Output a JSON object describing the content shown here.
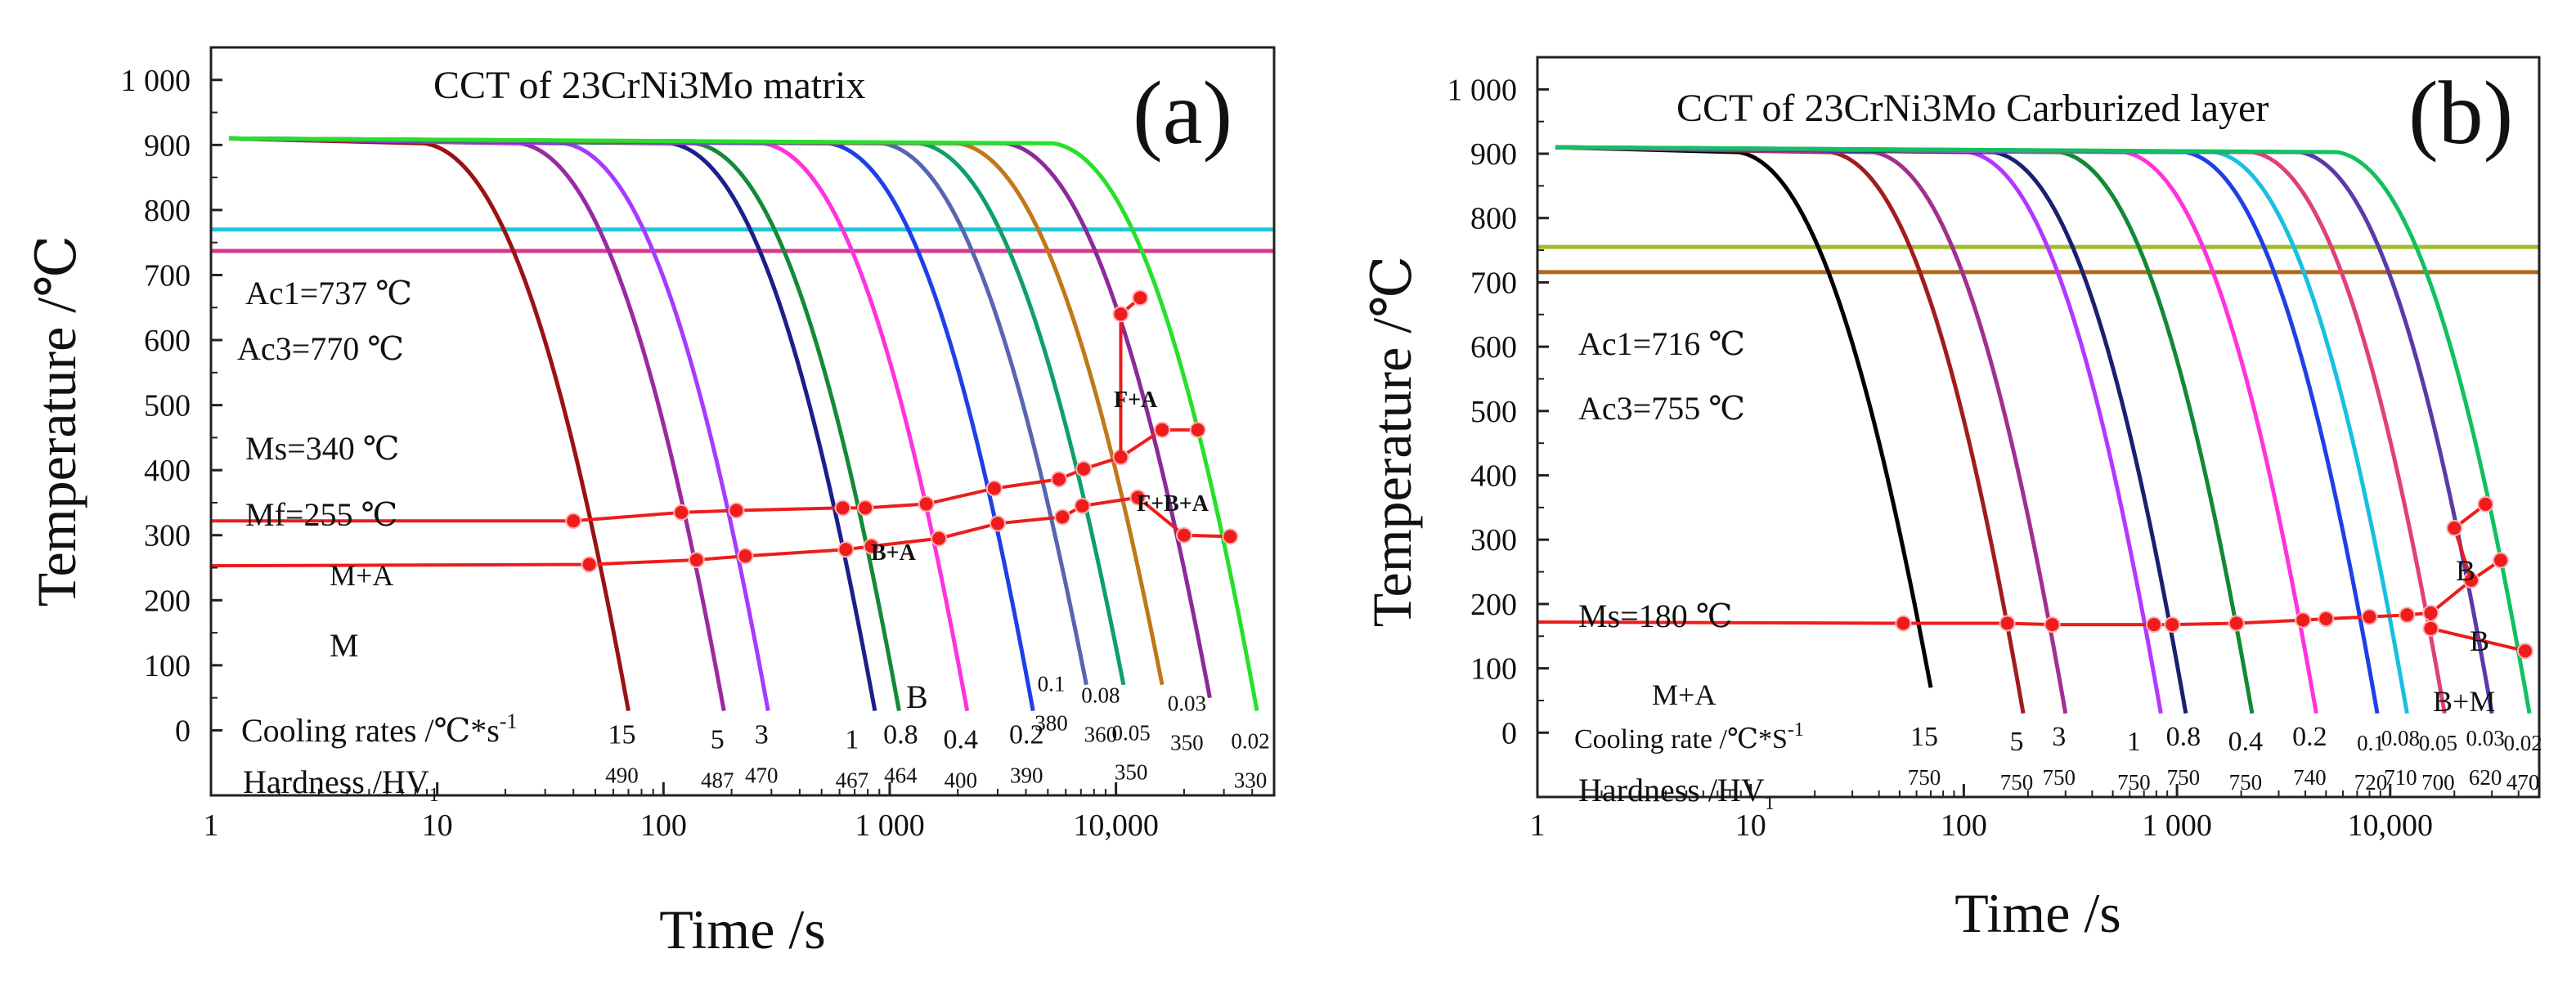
{
  "chart_data": [
    {
      "type": "line",
      "panel": "a",
      "panel_letter": "(a)",
      "title": "CCT of 23CrNi3Mo matrix",
      "xlabel": "Time /s",
      "ylabel": "Temperature /℃",
      "xscale": "log",
      "xlim": [
        1,
        50000
      ],
      "ylim": [
        -100,
        1050
      ],
      "x_ticks": [
        {
          "value": 1,
          "label": "1"
        },
        {
          "value": 10,
          "label": "10"
        },
        {
          "value": 100,
          "label": "100"
        },
        {
          "value": 1000,
          "label": "1 000"
        },
        {
          "value": 10000,
          "label": "10,000"
        }
      ],
      "y_ticks": [
        {
          "value": 0,
          "label": "0"
        },
        {
          "value": 100,
          "label": "100"
        },
        {
          "value": 200,
          "label": "200"
        },
        {
          "value": 300,
          "label": "300"
        },
        {
          "value": 400,
          "label": "400"
        },
        {
          "value": 500,
          "label": "500"
        },
        {
          "value": 600,
          "label": "600"
        },
        {
          "value": 700,
          "label": "700"
        },
        {
          "value": 800,
          "label": "800"
        },
        {
          "value": 900,
          "label": "900"
        },
        {
          "value": 1000,
          "label": "1 000"
        }
      ],
      "hlines": [
        {
          "name": "Ac3",
          "y": 770,
          "color": "#1ec8dc"
        },
        {
          "name": "Ac1",
          "y": 737,
          "color": "#d8388f"
        }
      ],
      "cooling_curves": [
        {
          "rate": "15",
          "hv": "490",
          "t_end": 70,
          "y_end": 30,
          "color": "#9b1212"
        },
        {
          "rate": "5",
          "hv": "487",
          "t_end": 185,
          "y_end": 30,
          "color": "#9a2aa0"
        },
        {
          "rate": "3",
          "hv": "470",
          "t_end": 290,
          "y_end": 30,
          "color": "#a53bff"
        },
        {
          "rate": "1",
          "hv": "467",
          "t_end": 860,
          "y_end": 30,
          "color": "#1a1f8a"
        },
        {
          "rate": "0.8",
          "hv": "464",
          "t_end": 1100,
          "y_end": 30,
          "color": "#138a36"
        },
        {
          "rate": "0.4",
          "hv": "400",
          "t_end": 2200,
          "y_end": 30,
          "color": "#ff33dd"
        },
        {
          "rate": "0.2",
          "hv": "390",
          "t_end": 4300,
          "y_end": 30,
          "color": "#1f3fe6"
        },
        {
          "rate": "0.1",
          "hv": "380",
          "t_end": 7400,
          "y_end": 70,
          "color": "#5766b0"
        },
        {
          "rate": "0.08",
          "hv": "360",
          "t_end": 10800,
          "y_end": 70,
          "color": "#0ea066"
        },
        {
          "rate": "0.05",
          "hv": "350",
          "t_end": 16000,
          "y_end": 70,
          "color": "#c07818"
        },
        {
          "rate": "0.03",
          "hv": "350",
          "t_end": 26000,
          "y_end": 50,
          "color": "#8c2a9a"
        },
        {
          "rate": "0.02",
          "hv": "330",
          "t_end": 42000,
          "y_end": 30,
          "color": "#26e02a"
        }
      ],
      "transformation_start": [
        {
          "x": 1,
          "y": 322
        },
        {
          "x": 40,
          "y": 322
        },
        {
          "x": 120,
          "y": 335
        },
        {
          "x": 210,
          "y": 338
        },
        {
          "x": 620,
          "y": 342
        },
        {
          "x": 780,
          "y": 342
        },
        {
          "x": 1450,
          "y": 348
        },
        {
          "x": 2900,
          "y": 372
        },
        {
          "x": 5600,
          "y": 386
        },
        {
          "x": 7200,
          "y": 402
        },
        {
          "x": 10500,
          "y": 420
        },
        {
          "x": 16000,
          "y": 462
        },
        {
          "x": 23000,
          "y": 462
        }
      ],
      "transformation_end": [
        {
          "x": 1,
          "y": 253
        },
        {
          "x": 47,
          "y": 255
        },
        {
          "x": 140,
          "y": 262
        },
        {
          "x": 230,
          "y": 268
        },
        {
          "x": 640,
          "y": 278
        },
        {
          "x": 830,
          "y": 283
        },
        {
          "x": 1650,
          "y": 295
        },
        {
          "x": 3000,
          "y": 318
        },
        {
          "x": 5800,
          "y": 328
        },
        {
          "x": 7100,
          "y": 345
        },
        {
          "x": 12500,
          "y": 358
        },
        {
          "x": 20000,
          "y": 300
        },
        {
          "x": 32000,
          "y": 298
        }
      ],
      "ferrite_line": [
        {
          "x": 10500,
          "y": 420
        },
        {
          "x": 10500,
          "y": 640
        },
        {
          "x": 12800,
          "y": 665
        }
      ],
      "ferrite_points": [
        {
          "x": 12500,
          "y": 358
        },
        {
          "x": 10500,
          "y": 640
        },
        {
          "x": 12800,
          "y": 665
        }
      ],
      "annotations": {
        "ac1": "Ac1=737 ℃",
        "ac3": "Ac3=770 ℃",
        "ms": "Ms=340 ℃",
        "mf": "Mf=255 ℃",
        "m_a": "M+A",
        "m": "M",
        "b": "B",
        "b_a": "B+A",
        "f_a": "F+A",
        "f_b_a": "F+B+A",
        "cooling_rates_text": "Cooling rates /℃*s",
        "cooling_rates_sup": "-1",
        "hardness_text": "Hardness /HV",
        "hardness_sub": "1"
      }
    },
    {
      "type": "line",
      "panel": "b",
      "panel_letter": "(b)",
      "title": "CCT of 23CrNi3Mo Carburized layer",
      "xlabel": "Time /s",
      "ylabel": "Temperature /℃",
      "xscale": "log",
      "xlim": [
        1,
        50000
      ],
      "ylim": [
        -100,
        1050
      ],
      "x_ticks": [
        {
          "value": 1,
          "label": "1"
        },
        {
          "value": 10,
          "label": "10"
        },
        {
          "value": 100,
          "label": "100"
        },
        {
          "value": 1000,
          "label": "1 000"
        },
        {
          "value": 10000,
          "label": "10,000"
        }
      ],
      "y_ticks": [
        {
          "value": 0,
          "label": "0"
        },
        {
          "value": 100,
          "label": "100"
        },
        {
          "value": 200,
          "label": "200"
        },
        {
          "value": 300,
          "label": "300"
        },
        {
          "value": 400,
          "label": "400"
        },
        {
          "value": 500,
          "label": "500"
        },
        {
          "value": 600,
          "label": "600"
        },
        {
          "value": 700,
          "label": "700"
        },
        {
          "value": 800,
          "label": "800"
        },
        {
          "value": 900,
          "label": "900"
        },
        {
          "value": 1000,
          "label": "1 000"
        }
      ],
      "hlines": [
        {
          "name": "Ac3",
          "y": 755,
          "color": "#9cbc2a"
        },
        {
          "name": "Ac1",
          "y": 716,
          "color": "#b06a1e"
        }
      ],
      "cooling_curves": [
        {
          "rate": "15",
          "hv": "750",
          "t_end": 70,
          "y_end": 70,
          "color": "#000000"
        },
        {
          "rate": "5",
          "hv": "750",
          "t_end": 190,
          "y_end": 30,
          "color": "#a01d1d"
        },
        {
          "rate": "3",
          "hv": "750",
          "t_end": 300,
          "y_end": 30,
          "color": "#a0308f"
        },
        {
          "rate": "1",
          "hv": "750",
          "t_end": 840,
          "y_end": 30,
          "color": "#b338ff"
        },
        {
          "rate": "0.8",
          "hv": "750",
          "t_end": 1100,
          "y_end": 30,
          "color": "#1a2070"
        },
        {
          "rate": "0.4",
          "hv": "750",
          "t_end": 2250,
          "y_end": 30,
          "color": "#118a33"
        },
        {
          "rate": "0.2",
          "hv": "740",
          "t_end": 4500,
          "y_end": 30,
          "color": "#ff33dd"
        },
        {
          "rate": "0.1",
          "hv": "720",
          "t_end": 8700,
          "y_end": 30,
          "color": "#1f3fe6"
        },
        {
          "rate": "0.08",
          "hv": "710",
          "t_end": 12000,
          "y_end": 30,
          "color": "#18c0e0"
        },
        {
          "rate": "0.05",
          "hv": "700",
          "t_end": 18000,
          "y_end": 30,
          "color": "#e0407a"
        },
        {
          "rate": "0.03",
          "hv": "620",
          "t_end": 30000,
          "y_end": 30,
          "color": "#5a3aa8"
        },
        {
          "rate": "0.02",
          "hv": "470",
          "t_end": 45000,
          "y_end": 30,
          "color": "#12c060"
        }
      ],
      "transformation_start": [
        {
          "x": 1,
          "y": 172
        },
        {
          "x": 52,
          "y": 170
        },
        {
          "x": 160,
          "y": 170
        },
        {
          "x": 260,
          "y": 168
        },
        {
          "x": 780,
          "y": 168
        },
        {
          "x": 950,
          "y": 168
        },
        {
          "x": 1900,
          "y": 170
        },
        {
          "x": 3900,
          "y": 175
        },
        {
          "x": 5000,
          "y": 177
        },
        {
          "x": 8000,
          "y": 180
        },
        {
          "x": 12000,
          "y": 183
        },
        {
          "x": 15500,
          "y": 186
        },
        {
          "x": 24000,
          "y": 237
        },
        {
          "x": 33000,
          "y": 268
        }
      ],
      "b_start_line": [
        {
          "x": 20000,
          "y": 318
        },
        {
          "x": 28000,
          "y": 355
        }
      ],
      "b_end_line": [
        {
          "x": 20000,
          "y": 318
        },
        {
          "x": 24000,
          "y": 237
        }
      ],
      "bm_line": [
        {
          "x": 15500,
          "y": 186
        },
        {
          "x": 15500,
          "y": 162
        },
        {
          "x": 43000,
          "y": 127
        }
      ],
      "extra_points": [
        {
          "x": 20000,
          "y": 318
        },
        {
          "x": 28000,
          "y": 355
        },
        {
          "x": 15500,
          "y": 162
        },
        {
          "x": 43000,
          "y": 127
        }
      ],
      "annotations": {
        "ac1": "Ac1=716 ℃",
        "ac3": "Ac3=755 ℃",
        "ms": "Ms=180 ℃",
        "m_a": "M+A",
        "b1": "B",
        "b2": "B",
        "b_m": "B+M",
        "cooling_rates_text": "Cooling rate /℃*S",
        "cooling_rates_sup": "-1",
        "hardness_text": "Hardness /HV",
        "hardness_sub": "1"
      }
    }
  ]
}
